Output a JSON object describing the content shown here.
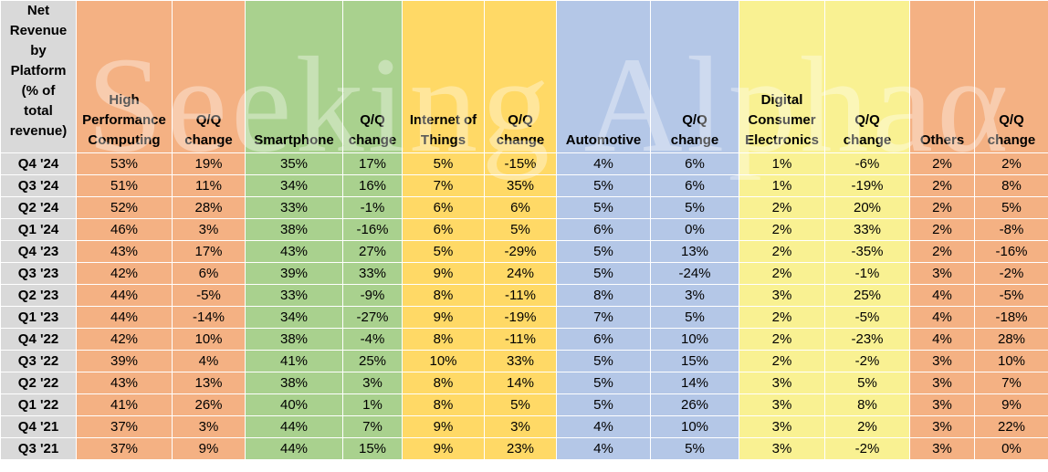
{
  "header": {
    "first_col": [
      "Net",
      "Revenue",
      "by",
      "Platform",
      "(% of",
      "total",
      "revenue)"
    ],
    "columns": [
      {
        "lines": [
          "High",
          "Performance",
          "Computing"
        ]
      },
      {
        "lines": [
          "Q/Q",
          "change"
        ]
      },
      {
        "lines": [
          "Smartphone"
        ]
      },
      {
        "lines": [
          "Q/Q",
          "change"
        ]
      },
      {
        "lines": [
          "Internet of",
          "Things"
        ]
      },
      {
        "lines": [
          "Q/Q",
          "change"
        ]
      },
      {
        "lines": [
          "Automotive"
        ]
      },
      {
        "lines": [
          "Q/Q",
          "change"
        ]
      },
      {
        "lines": [
          "Digital",
          "Consumer",
          "Electronics"
        ]
      },
      {
        "lines": [
          "Q/Q",
          "change"
        ]
      },
      {
        "lines": [
          "Others"
        ]
      },
      {
        "lines": [
          "Q/Q",
          "change"
        ]
      }
    ]
  },
  "rows": [
    {
      "period": "Q4 '24",
      "values": [
        "53%",
        "19%",
        "35%",
        "17%",
        "5%",
        "-15%",
        "4%",
        "6%",
        "1%",
        "-6%",
        "2%",
        "2%"
      ]
    },
    {
      "period": "Q3 '24",
      "values": [
        "51%",
        "11%",
        "34%",
        "16%",
        "7%",
        "35%",
        "5%",
        "6%",
        "1%",
        "-19%",
        "2%",
        "8%"
      ]
    },
    {
      "period": "Q2 '24",
      "values": [
        "52%",
        "28%",
        "33%",
        "-1%",
        "6%",
        "6%",
        "5%",
        "5%",
        "2%",
        "20%",
        "2%",
        "5%"
      ]
    },
    {
      "period": "Q1 '24",
      "values": [
        "46%",
        "3%",
        "38%",
        "-16%",
        "6%",
        "5%",
        "6%",
        "0%",
        "2%",
        "33%",
        "2%",
        "-8%"
      ]
    },
    {
      "period": "Q4 '23",
      "values": [
        "43%",
        "17%",
        "43%",
        "27%",
        "5%",
        "-29%",
        "5%",
        "13%",
        "2%",
        "-35%",
        "2%",
        "-16%"
      ]
    },
    {
      "period": "Q3 '23",
      "values": [
        "42%",
        "6%",
        "39%",
        "33%",
        "9%",
        "24%",
        "5%",
        "-24%",
        "2%",
        "-1%",
        "3%",
        "-2%"
      ]
    },
    {
      "period": "Q2 '23",
      "values": [
        "44%",
        "-5%",
        "33%",
        "-9%",
        "8%",
        "-11%",
        "8%",
        "3%",
        "3%",
        "25%",
        "4%",
        "-5%"
      ]
    },
    {
      "period": "Q1 '23",
      "values": [
        "44%",
        "-14%",
        "34%",
        "-27%",
        "9%",
        "-19%",
        "7%",
        "5%",
        "2%",
        "-5%",
        "4%",
        "-18%"
      ]
    },
    {
      "period": "Q4 '22",
      "values": [
        "42%",
        "10%",
        "38%",
        "-4%",
        "8%",
        "-11%",
        "6%",
        "10%",
        "2%",
        "-23%",
        "4%",
        "28%"
      ]
    },
    {
      "period": "Q3 '22",
      "values": [
        "39%",
        "4%",
        "41%",
        "25%",
        "10%",
        "33%",
        "5%",
        "15%",
        "2%",
        "-2%",
        "3%",
        "10%"
      ]
    },
    {
      "period": "Q2 '22",
      "values": [
        "43%",
        "13%",
        "38%",
        "3%",
        "8%",
        "14%",
        "5%",
        "14%",
        "3%",
        "5%",
        "3%",
        "7%"
      ]
    },
    {
      "period": "Q1 '22",
      "values": [
        "41%",
        "26%",
        "40%",
        "1%",
        "8%",
        "5%",
        "5%",
        "26%",
        "3%",
        "8%",
        "3%",
        "9%"
      ]
    },
    {
      "period": "Q4 '21",
      "values": [
        "37%",
        "3%",
        "44%",
        "7%",
        "9%",
        "3%",
        "4%",
        "10%",
        "3%",
        "2%",
        "3%",
        "22%"
      ]
    },
    {
      "period": "Q3 '21",
      "values": [
        "37%",
        "9%",
        "44%",
        "15%",
        "9%",
        "23%",
        "4%",
        "5%",
        "3%",
        "-2%",
        "3%",
        "0%"
      ]
    }
  ],
  "colors": {
    "period_col": "#d9d9d9",
    "high_performance_computing": "#f4b183",
    "smartphone": "#a9d18e",
    "internet_of_things": "#ffd966",
    "automotive": "#b4c7e7",
    "digital_consumer_electronics": "#f9f192",
    "others": "#f4b183"
  },
  "watermark": "Seeking Alphaα"
}
